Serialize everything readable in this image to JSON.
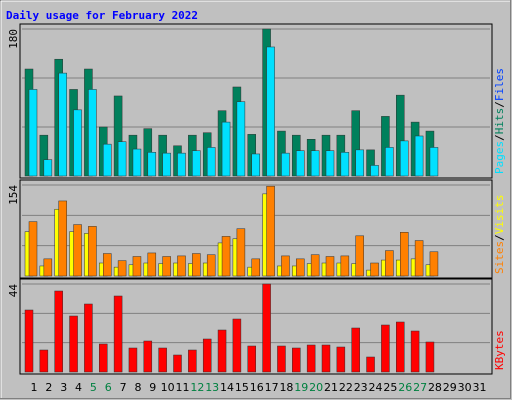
{
  "chart_data": {
    "type": "bar",
    "title": "Daily usage for February 2022",
    "categories": [
      "1",
      "2",
      "3",
      "4",
      "5",
      "6",
      "7",
      "8",
      "9",
      "10",
      "11",
      "12",
      "13",
      "14",
      "15",
      "16",
      "17",
      "18",
      "19",
      "20",
      "21",
      "22",
      "23",
      "24",
      "25",
      "26",
      "27",
      "28",
      "29",
      "30",
      "31"
    ],
    "weekend": [
      false,
      false,
      false,
      false,
      true,
      true,
      false,
      false,
      false,
      false,
      false,
      true,
      true,
      false,
      false,
      false,
      false,
      false,
      true,
      true,
      false,
      false,
      false,
      false,
      false,
      true,
      true,
      false,
      false,
      false,
      false
    ],
    "weekend_color": "#008040",
    "legend_separator": "/",
    "panels": [
      {
        "ylim": [
          0,
          180
        ],
        "yticks": [
          180
        ],
        "grid_lines": [
          60,
          120
        ],
        "legend_extra": [
          {
            "name": "Files",
            "color": "#0040ff"
          }
        ],
        "series": [
          {
            "name": "Hits",
            "color": "#00805c",
            "values": [
              131,
              50,
              143,
              106,
              131,
              60,
              98,
              50,
              58,
              50,
              37,
              50,
              53,
              80,
              109,
              51,
              180,
              55,
              50,
              45,
              50,
              50,
              80,
              32,
              73,
              99,
              66,
              55,
              null,
              null,
              null
            ]
          },
          {
            "name": "Pages",
            "color": "#00e0ff",
            "values": [
              106,
              20,
              126,
              81,
              106,
              39,
              42,
              33,
              29,
              28,
              28,
              31,
              35,
              66,
              91,
              27,
              158,
              28,
              31,
              31,
              31,
              29,
              32,
              13,
              35,
              43,
              49,
              35,
              null,
              null,
              null
            ]
          }
        ]
      },
      {
        "ylim": [
          0,
          154
        ],
        "yticks": [
          154
        ],
        "grid_lines": [
          51.33,
          102.67
        ],
        "series": [
          {
            "name": "Visits",
            "color": "#ffff00",
            "values": [
              75,
              17,
              113,
              75,
              72,
              22,
              15,
              19,
              22,
              21,
              22,
              21,
              22,
              56,
              63,
              15,
              139,
              17,
              17,
              21,
              22,
              22,
              21,
              10,
              27,
              27,
              29,
              19,
              null,
              null,
              null
            ]
          },
          {
            "name": "Sites",
            "color": "#ff8000",
            "values": [
              92,
              29,
              127,
              87,
              84,
              38,
              26,
              33,
              39,
              33,
              34,
              38,
              36,
              67,
              80,
              29,
              152,
              34,
              29,
              36,
              33,
              34,
              68,
              22,
              43,
              74,
              60,
              41,
              null,
              null,
              null
            ]
          }
        ]
      },
      {
        "ylim": [
          0,
          44
        ],
        "yticks": [
          44
        ],
        "grid_lines": [
          14.67,
          29.33
        ],
        "series": [
          {
            "name": "KBytes",
            "color": "#ff0000",
            "values": [
              31,
              11,
              40.5,
              28,
              34,
              14,
              38,
              12,
              15.5,
              12,
              8.5,
              11,
              16.5,
              21,
              26.5,
              13,
              44,
              13,
              12,
              13.5,
              13.5,
              12.5,
              22,
              7.5,
              23.5,
              25,
              20.5,
              15,
              null,
              null,
              null
            ]
          }
        ]
      }
    ]
  }
}
